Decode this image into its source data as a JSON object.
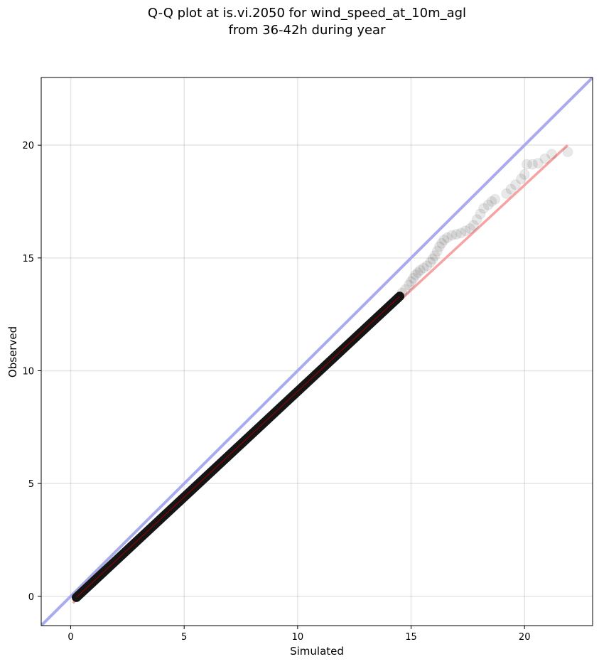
{
  "chart_data": {
    "type": "scatter",
    "title": "Q-Q plot at is.vi.2050 for wind_speed_at_10m_agl",
    "subtitle": "from 36-42h during year",
    "xlabel": "Simulated",
    "ylabel": "Observed",
    "xlim": [
      -1.3,
      23.0
    ],
    "ylim": [
      -1.3,
      23.0
    ],
    "xticks": [
      0,
      5,
      10,
      15,
      20
    ],
    "yticks": [
      0,
      5,
      10,
      15,
      20
    ],
    "grid": true,
    "reference_line": {
      "x": [
        -1.3,
        23.0
      ],
      "y": [
        -1.3,
        23.0
      ],
      "color": "#aaaaee"
    },
    "fit_line": {
      "x": [
        0.1,
        21.9
      ],
      "y": [
        -0.3,
        20.0
      ],
      "color": "#f5a3a3"
    },
    "dense_segment": {
      "x": [
        0.25,
        14.5
      ],
      "y": [
        -0.05,
        13.3
      ]
    },
    "points": [
      [
        14.6,
        13.45
      ],
      [
        14.75,
        13.6
      ],
      [
        14.9,
        13.8
      ],
      [
        15.0,
        13.95
      ],
      [
        15.1,
        14.1
      ],
      [
        15.2,
        14.25
      ],
      [
        15.3,
        14.35
      ],
      [
        15.4,
        14.45
      ],
      [
        15.55,
        14.55
      ],
      [
        15.7,
        14.65
      ],
      [
        15.85,
        14.8
      ],
      [
        15.95,
        14.95
      ],
      [
        16.05,
        15.1
      ],
      [
        16.15,
        15.3
      ],
      [
        16.25,
        15.5
      ],
      [
        16.35,
        15.65
      ],
      [
        16.45,
        15.8
      ],
      [
        16.6,
        15.9
      ],
      [
        16.8,
        16.0
      ],
      [
        17.0,
        16.05
      ],
      [
        17.2,
        16.1
      ],
      [
        17.4,
        16.2
      ],
      [
        17.6,
        16.3
      ],
      [
        17.75,
        16.45
      ],
      [
        17.9,
        16.7
      ],
      [
        18.05,
        16.95
      ],
      [
        18.2,
        17.2
      ],
      [
        18.4,
        17.35
      ],
      [
        18.55,
        17.5
      ],
      [
        18.7,
        17.6
      ],
      [
        19.2,
        17.85
      ],
      [
        19.4,
        18.05
      ],
      [
        19.6,
        18.25
      ],
      [
        19.85,
        18.5
      ],
      [
        20.0,
        18.7
      ],
      [
        20.1,
        19.15
      ],
      [
        20.35,
        19.15
      ],
      [
        20.6,
        19.2
      ],
      [
        20.9,
        19.4
      ],
      [
        21.2,
        19.6
      ],
      [
        21.9,
        19.7
      ]
    ]
  }
}
